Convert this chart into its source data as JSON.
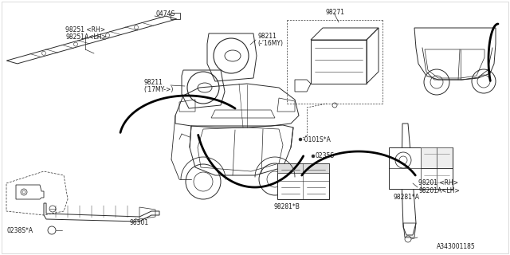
{
  "bg_color": "#ffffff",
  "line_color": "#2a2a2a",
  "text_color": "#1a1a1a",
  "font_size": 5.5,
  "diagram_id": "A343001185",
  "parts_labels": {
    "98251": "98251 <RH>\n98251A<LH>",
    "0474S": "0474S",
    "98211_16": "98211\n(-’16MY)",
    "98211_17": "98211\n(’17MY->)",
    "98271": "98271",
    "0101S": "-0101S*A",
    "0235S": "0235S",
    "98281B": "98281*B",
    "98281A": "98281*A",
    "98201": "98201 <RH>\n98201A<LH>",
    "98301": "98301",
    "0238S": "0238S*A"
  }
}
